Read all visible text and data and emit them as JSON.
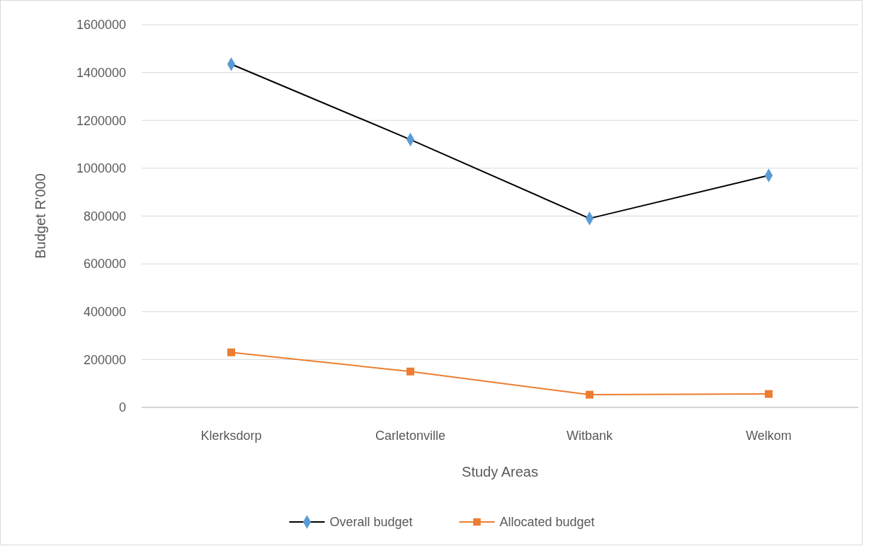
{
  "chart_data": {
    "type": "line",
    "xlabel": "Study Areas",
    "ylabel": "Budget R'000",
    "categories": [
      "Klerksdorp",
      "Carletonville",
      "Witbank",
      "Welkom"
    ],
    "series": [
      {
        "name": "Overall budget",
        "color": "#000000",
        "colors": [
          "#5b9bd5",
          "#5b9bd5",
          "#5b9bd5",
          "#5b9bd5"
        ],
        "marker": "diamond",
        "values": [
          1435000,
          1120000,
          790000,
          970000
        ]
      },
      {
        "name": "Allocated budget",
        "color": "#ed7d31",
        "colors": [
          "#ed7d31",
          "#ed7d31",
          "#ed7d31",
          "#ed7d31"
        ],
        "marker": "square",
        "values": [
          230000,
          150000,
          53000,
          56000
        ]
      }
    ],
    "ylim": [
      0,
      1600000
    ],
    "yticks": [
      0,
      200000,
      400000,
      600000,
      800000,
      1000000,
      1200000,
      1400000,
      1600000
    ],
    "grid": "y",
    "legend": "bottom"
  }
}
